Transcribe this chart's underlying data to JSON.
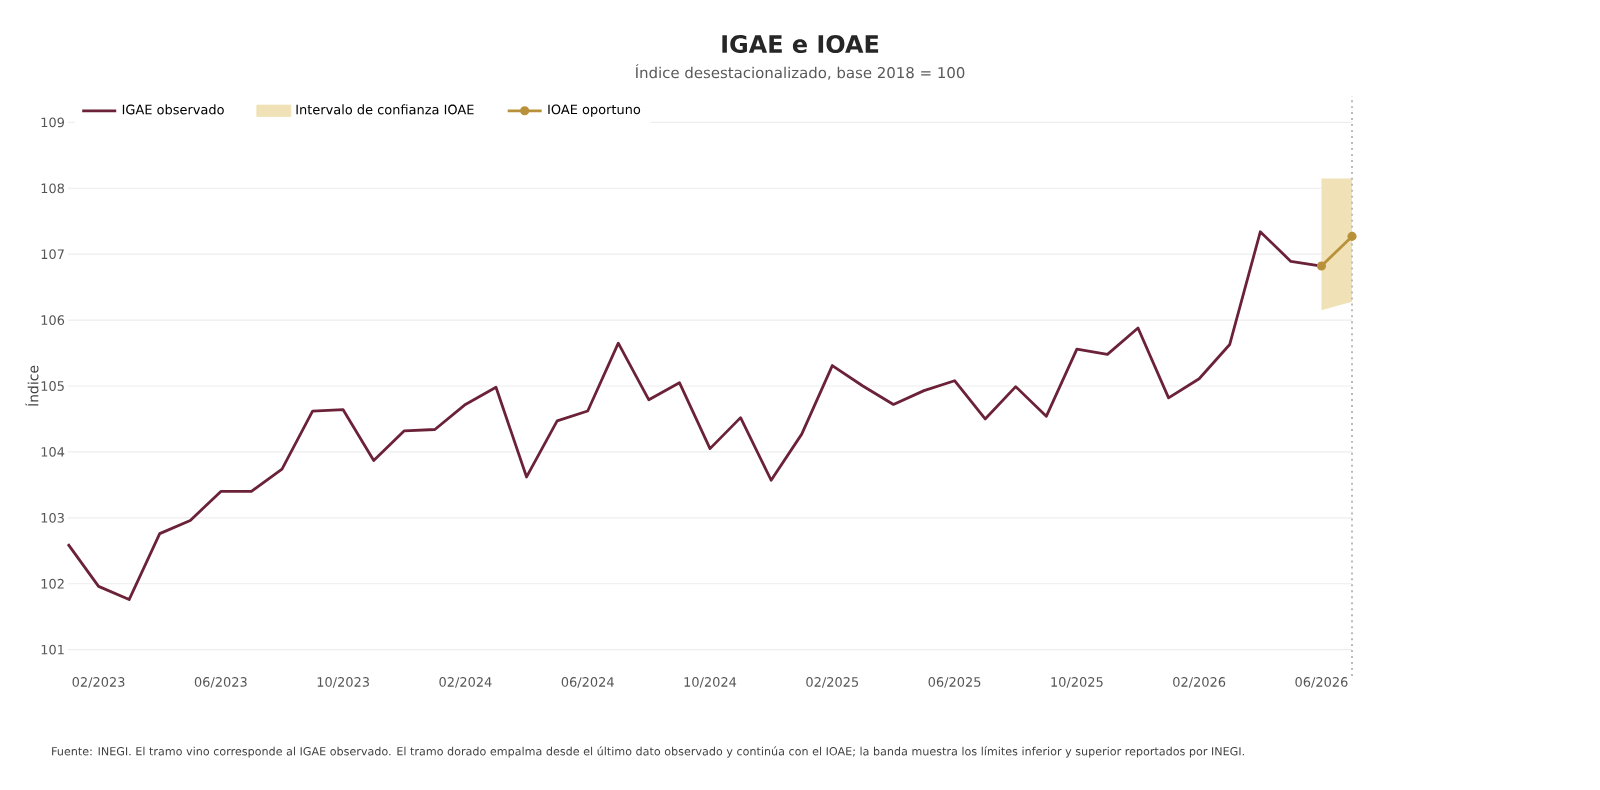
{
  "chart_data": {
    "type": "line",
    "title": "IGAE e IOAE",
    "subtitle": "Índice desestacionalizado, base 2018 = 100",
    "ylabel": "Índice",
    "x": [
      "2023-01",
      "2023-02",
      "2023-03",
      "2023-04",
      "2023-05",
      "2023-06",
      "2023-07",
      "2023-08",
      "2023-09",
      "2023-10",
      "2023-11",
      "2023-12",
      "2024-01",
      "2024-02",
      "2024-03",
      "2024-04",
      "2024-05",
      "2024-06",
      "2024-07",
      "2024-08",
      "2024-09",
      "2024-10",
      "2024-11",
      "2024-12",
      "2025-01",
      "2025-02",
      "2025-03",
      "2025-04",
      "2025-05",
      "2025-06",
      "2025-07",
      "2025-08",
      "2025-09",
      "2025-10",
      "2025-11",
      "2025-12",
      "2026-01",
      "2026-02",
      "2026-03",
      "2026-04",
      "2026-05",
      "2026-06"
    ],
    "series": [
      {
        "name": "IGAE observado",
        "color": "#6b2239",
        "values": [
          102.6,
          101.96,
          101.76,
          102.76,
          102.96,
          103.4,
          103.4,
          103.74,
          104.62,
          104.64,
          103.87,
          104.32,
          104.34,
          104.72,
          104.98,
          103.62,
          104.47,
          104.62,
          105.65,
          104.79,
          105.05,
          104.05,
          104.52,
          103.57,
          104.27,
          105.31,
          105.0,
          104.72,
          104.93,
          105.08,
          104.5,
          104.99,
          104.54,
          105.56,
          105.48,
          105.88,
          104.82,
          105.11,
          105.63,
          107.34,
          106.89,
          106.82
        ]
      },
      {
        "name": "Intervalo de confianza IOAE",
        "type": "area",
        "color": "#f0e2b6",
        "x": [
          "2026-06",
          "2026-07"
        ],
        "values": [
          null,
          null
        ],
        "lower": [
          106.15,
          106.28
        ],
        "upper": [
          108.15,
          108.15
        ]
      },
      {
        "name": "IOAE oportuno",
        "color": "#b8913a",
        "marker": "circle",
        "x": [
          "2026-06",
          "2026-07"
        ],
        "values": [
          106.82,
          107.27
        ]
      }
    ],
    "xlim": [
      "2023-01",
      "2026-07"
    ],
    "xticks": [
      {
        "value": "2023-02",
        "label": "02/2023"
      },
      {
        "value": "2023-06",
        "label": "06/2023"
      },
      {
        "value": "2023-10",
        "label": "10/2023"
      },
      {
        "value": "2024-02",
        "label": "02/2024"
      },
      {
        "value": "2024-06",
        "label": "06/2024"
      },
      {
        "value": "2024-10",
        "label": "10/2024"
      },
      {
        "value": "2025-02",
        "label": "02/2025"
      },
      {
        "value": "2025-06",
        "label": "06/2025"
      },
      {
        "value": "2025-10",
        "label": "10/2025"
      },
      {
        "value": "2026-02",
        "label": "02/2026"
      },
      {
        "value": "2026-06",
        "label": "06/2026"
      }
    ],
    "ylim": [
      100.6,
      109.4
    ],
    "yticks": [
      101,
      102,
      103,
      104,
      105,
      106,
      107,
      108,
      109
    ],
    "grid": "y",
    "legend": "top left",
    "ref_lines": [
      {
        "axis": "x",
        "value": "2026-07",
        "color": "#bbbbbb",
        "line_style": "dotted"
      }
    ],
    "annotations": [
      "Fuente: INEGI. El tramo vino corresponde al IGAE observado. El tramo dorado empalma desde el último dato observado y continúa con el IOAE; la banda muestra los límites inferior y superior reportados por INEGI."
    ]
  }
}
